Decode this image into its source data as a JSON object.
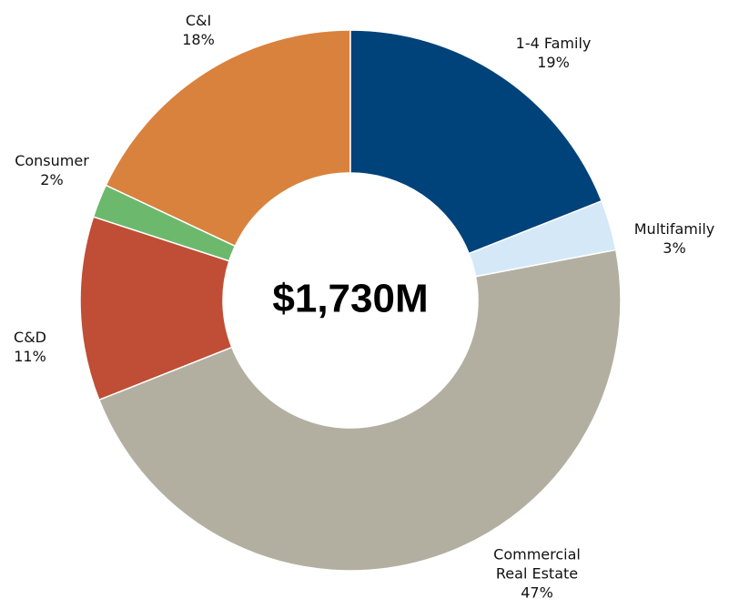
{
  "chart_data": {
    "type": "donut",
    "center_label": "$1,730M",
    "categories": [
      "1-4 Family",
      "Multifamily",
      "Commercial Real Estate",
      "C&D",
      "Consumer",
      "C&I"
    ],
    "values": [
      19,
      3,
      47,
      11,
      2,
      18
    ],
    "value_labels": [
      "19%",
      "3%",
      "47%",
      "11%",
      "2%",
      "18%"
    ],
    "colors": [
      "#00427a",
      "#d5e8f8",
      "#b3afa0",
      "#c04d35",
      "#6cb96e",
      "#d9823e"
    ]
  }
}
